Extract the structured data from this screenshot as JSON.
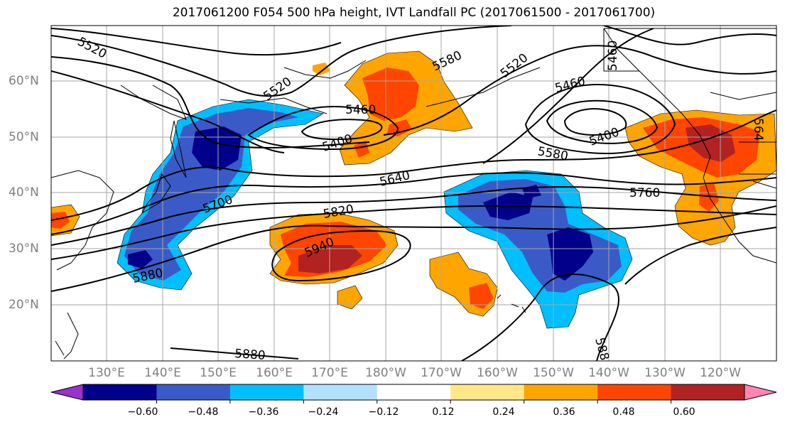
{
  "title": "2017061200 F054 500 hPa height, IVT Landfall PC (2017061500 - 2017061700)",
  "lat_labels": [
    "60°N",
    "50°N",
    "40°N",
    "30°N",
    "20°N"
  ],
  "lon_labels": [
    "130°E",
    "140°E",
    "150°E",
    "160°E",
    "170°E",
    "180°W",
    "170°W",
    "160°W",
    "150°W",
    "140°W",
    "130°W",
    "120°W"
  ],
  "contour_labels": [
    "5520",
    "5520",
    "5580",
    "5520",
    "5460",
    "5460",
    "5460",
    "5400",
    "5400",
    "5640",
    "5580",
    "5760",
    "5700",
    "5820",
    "5940",
    "5880",
    "5880",
    "588",
    "564"
  ],
  "colorbar": {
    "colors": [
      "#9932cc",
      "#00008b",
      "#3a5bc7",
      "#00bfff",
      "#b0e2ff",
      "#ffffff",
      "#ffe787",
      "#ffa500",
      "#ff4500",
      "#b22222",
      "#ff85b4"
    ],
    "ticks": [
      "−0.60",
      "−0.48",
      "−0.36",
      "−0.24",
      "−0.12",
      "0.12",
      "0.24",
      "0.36",
      "0.48",
      "0.60"
    ]
  }
}
